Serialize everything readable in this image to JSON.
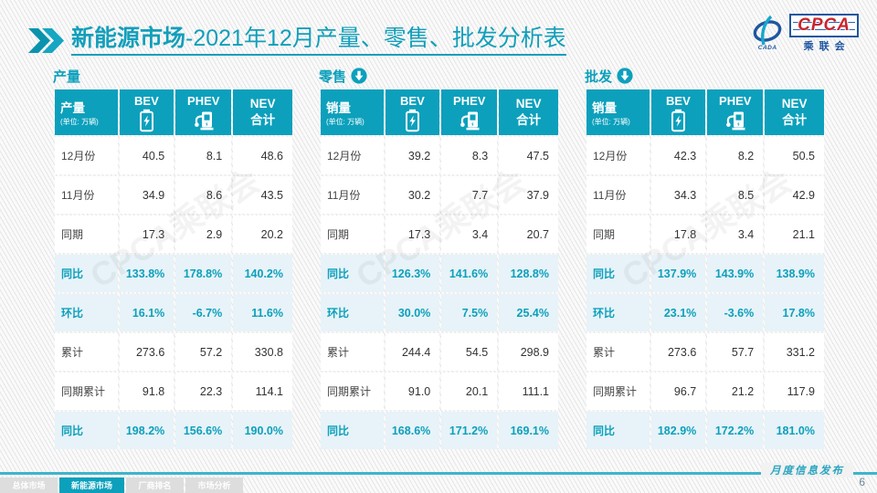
{
  "page": {
    "title_bold": "新能源市场",
    "title_rest": "-2021年12月产量、零售、批发分析表",
    "publication": "月度信息发布",
    "page_number": "6",
    "watermark": "CPCA乘联会"
  },
  "logo": {
    "cpca": "CPCA",
    "cada": "CADA",
    "assoc": "乘联会"
  },
  "tables": [
    {
      "id": "production",
      "section": "产量",
      "arrow": false,
      "header": {
        "label": "产量",
        "unit": "(单位: 万辆)",
        "bev": "BEV",
        "phev": "PHEV",
        "nev_line1": "NEV",
        "nev_line2": "合计"
      },
      "rows": [
        {
          "label": "12月份",
          "bev": "40.5",
          "phev": "8.1",
          "nev": "48.6",
          "highlight": false
        },
        {
          "label": "11月份",
          "bev": "34.9",
          "phev": "8.6",
          "nev": "43.5",
          "highlight": false
        },
        {
          "label": "同期",
          "bev": "17.3",
          "phev": "2.9",
          "nev": "20.2",
          "highlight": false
        },
        {
          "label": "同比",
          "bev": "133.8%",
          "phev": "178.8%",
          "nev": "140.2%",
          "highlight": true
        },
        {
          "label": "环比",
          "bev": "16.1%",
          "phev": "-6.7%",
          "nev": "11.6%",
          "highlight": true
        },
        {
          "label": "累计",
          "bev": "273.6",
          "phev": "57.2",
          "nev": "330.8",
          "highlight": false
        },
        {
          "label": "同期累计",
          "bev": "91.8",
          "phev": "22.3",
          "nev": "114.1",
          "highlight": false
        },
        {
          "label": "同比",
          "bev": "198.2%",
          "phev": "156.6%",
          "nev": "190.0%",
          "highlight": true
        }
      ]
    },
    {
      "id": "retail",
      "section": "零售",
      "arrow": true,
      "header": {
        "label": "销量",
        "unit": "(单位: 万辆)",
        "bev": "BEV",
        "phev": "PHEV",
        "nev_line1": "NEV",
        "nev_line2": "合计"
      },
      "rows": [
        {
          "label": "12月份",
          "bev": "39.2",
          "phev": "8.3",
          "nev": "47.5",
          "highlight": false
        },
        {
          "label": "11月份",
          "bev": "30.2",
          "phev": "7.7",
          "nev": "37.9",
          "highlight": false
        },
        {
          "label": "同期",
          "bev": "17.3",
          "phev": "3.4",
          "nev": "20.7",
          "highlight": false
        },
        {
          "label": "同比",
          "bev": "126.3%",
          "phev": "141.6%",
          "nev": "128.8%",
          "highlight": true
        },
        {
          "label": "环比",
          "bev": "30.0%",
          "phev": "7.5%",
          "nev": "25.4%",
          "highlight": true
        },
        {
          "label": "累计",
          "bev": "244.4",
          "phev": "54.5",
          "nev": "298.9",
          "highlight": false
        },
        {
          "label": "同期累计",
          "bev": "91.0",
          "phev": "20.1",
          "nev": "111.1",
          "highlight": false
        },
        {
          "label": "同比",
          "bev": "168.6%",
          "phev": "171.2%",
          "nev": "169.1%",
          "highlight": true
        }
      ]
    },
    {
      "id": "wholesale",
      "section": "批发",
      "arrow": true,
      "header": {
        "label": "销量",
        "unit": "(单位: 万辆)",
        "bev": "BEV",
        "phev": "PHEV",
        "nev_line1": "NEV",
        "nev_line2": "合计"
      },
      "rows": [
        {
          "label": "12月份",
          "bev": "42.3",
          "phev": "8.2",
          "nev": "50.5",
          "highlight": false
        },
        {
          "label": "11月份",
          "bev": "34.3",
          "phev": "8.5",
          "nev": "42.9",
          "highlight": false
        },
        {
          "label": "同期",
          "bev": "17.8",
          "phev": "3.4",
          "nev": "21.1",
          "highlight": false
        },
        {
          "label": "同比",
          "bev": "137.9%",
          "phev": "143.9%",
          "nev": "138.9%",
          "highlight": true
        },
        {
          "label": "环比",
          "bev": "23.1%",
          "phev": "-3.6%",
          "nev": "17.8%",
          "highlight": true
        },
        {
          "label": "累计",
          "bev": "273.6",
          "phev": "57.7",
          "nev": "331.2",
          "highlight": false
        },
        {
          "label": "同期累计",
          "bev": "96.7",
          "phev": "21.2",
          "nev": "117.9",
          "highlight": false
        },
        {
          "label": "同比",
          "bev": "182.9%",
          "phev": "172.2%",
          "nev": "181.0%",
          "highlight": true
        }
      ]
    }
  ],
  "footer_tabs": [
    {
      "label": "总体市场",
      "active": false
    },
    {
      "label": "新能源市场",
      "active": true
    },
    {
      "label": "厂商排名",
      "active": false
    },
    {
      "label": "市场分析",
      "active": false
    }
  ],
  "colors": {
    "teal": "#0CA0BC",
    "title": "#129FBB",
    "row_highlight": "#E7F3F8",
    "bottom_line": "#3FB4CC",
    "logo_blue": "#1E56A0",
    "logo_red": "#C8242C"
  }
}
